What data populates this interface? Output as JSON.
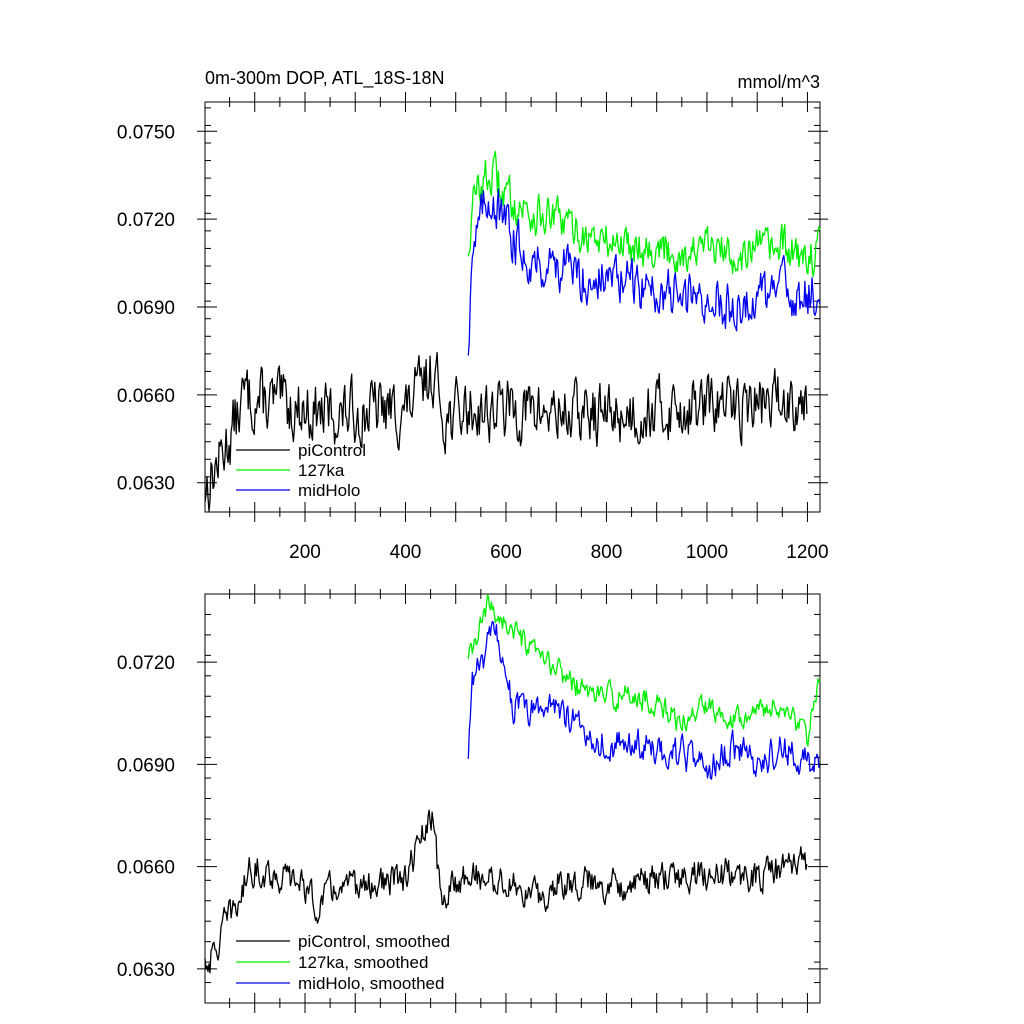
{
  "figure": {
    "title_left": "0m-300m DOP, ATL_18S-18N",
    "title_right": "mmol/m^3"
  },
  "chart_data": [
    {
      "type": "line",
      "panel": "top",
      "title": "0m-300m DOP, ATL_18S-18N",
      "units": "mmol/m^3",
      "xlim": [
        1,
        1225
      ],
      "ylim": [
        0.062,
        0.076
      ],
      "yticks": [
        0.063,
        0.066,
        0.069,
        0.072,
        0.075
      ],
      "ytick_labels": [
        "0.0630",
        "0.0660",
        "0.0690",
        "0.0720",
        "0.0750"
      ],
      "xticks": [
        200,
        400,
        600,
        800,
        1000,
        1200
      ],
      "xtick_labels": [
        "200",
        "400",
        "600",
        "800",
        "1000",
        "1200"
      ],
      "legend_position": "lower-left",
      "series": [
        {
          "name": "piControl",
          "color": "#000000",
          "x_start": 1,
          "x_end": 1200,
          "anchors": [
            [
              1,
              0.0628
            ],
            [
              30,
              0.0638
            ],
            [
              60,
              0.065
            ],
            [
              80,
              0.066
            ],
            [
              100,
              0.0658
            ],
            [
              150,
              0.0657
            ],
            [
              200,
              0.0655
            ],
            [
              250,
              0.0653
            ],
            [
              300,
              0.0654
            ],
            [
              350,
              0.0655
            ],
            [
              400,
              0.0654
            ],
            [
              430,
              0.0662
            ],
            [
              455,
              0.0668
            ],
            [
              480,
              0.0652
            ],
            [
              520,
              0.0655
            ],
            [
              600,
              0.0655
            ],
            [
              700,
              0.0654
            ],
            [
              800,
              0.0653
            ],
            [
              900,
              0.0655
            ],
            [
              1000,
              0.0656
            ],
            [
              1100,
              0.0657
            ],
            [
              1200,
              0.066
            ]
          ],
          "noise": 0.0009
        },
        {
          "name": "127ka",
          "color": "#00ee00",
          "x_start": 525,
          "x_end": 1225,
          "anchors": [
            [
              525,
              0.071
            ],
            [
              535,
              0.0725
            ],
            [
              550,
              0.0733
            ],
            [
              575,
              0.0735
            ],
            [
              600,
              0.0728
            ],
            [
              650,
              0.0722
            ],
            [
              700,
              0.072
            ],
            [
              750,
              0.0715
            ],
            [
              800,
              0.0712
            ],
            [
              850,
              0.0712
            ],
            [
              900,
              0.071
            ],
            [
              950,
              0.0708
            ],
            [
              1000,
              0.071
            ],
            [
              1050,
              0.0708
            ],
            [
              1100,
              0.071
            ],
            [
              1150,
              0.071
            ],
            [
              1200,
              0.0706
            ],
            [
              1225,
              0.071
            ]
          ],
          "noise": 0.0006
        },
        {
          "name": "midHolo",
          "color": "#0000ee",
          "x_start": 525,
          "x_end": 1225,
          "anchors": [
            [
              525,
              0.0676
            ],
            [
              532,
              0.071
            ],
            [
              550,
              0.072
            ],
            [
              570,
              0.073
            ],
            [
              590,
              0.072
            ],
            [
              620,
              0.0712
            ],
            [
              660,
              0.0705
            ],
            [
              700,
              0.0705
            ],
            [
              750,
              0.07
            ],
            [
              800,
              0.07
            ],
            [
              850,
              0.0698
            ],
            [
              900,
              0.0696
            ],
            [
              950,
              0.0693
            ],
            [
              1000,
              0.0693
            ],
            [
              1050,
              0.069
            ],
            [
              1100,
              0.0693
            ],
            [
              1150,
              0.0696
            ],
            [
              1200,
              0.0693
            ],
            [
              1225,
              0.0695
            ]
          ],
          "noise": 0.0007
        }
      ]
    },
    {
      "type": "line",
      "panel": "bottom",
      "xlim": [
        1,
        1225
      ],
      "ylim": [
        0.062,
        0.074
      ],
      "yticks": [
        0.063,
        0.066,
        0.069,
        0.072
      ],
      "ytick_labels": [
        "0.0630",
        "0.0660",
        "0.0690",
        "0.0720"
      ],
      "xticks": [
        200,
        400,
        600,
        800,
        1000,
        1200
      ],
      "legend_position": "lower-left",
      "series": [
        {
          "name": "piControl, smoothed",
          "color": "#000000",
          "x_start": 1,
          "x_end": 1200,
          "anchors": [
            [
              1,
              0.0632
            ],
            [
              20,
              0.0634
            ],
            [
              40,
              0.0643
            ],
            [
              70,
              0.065
            ],
            [
              90,
              0.066
            ],
            [
              150,
              0.0657
            ],
            [
              200,
              0.0655
            ],
            [
              220,
              0.0648
            ],
            [
              250,
              0.0653
            ],
            [
              300,
              0.0654
            ],
            [
              350,
              0.0655
            ],
            [
              400,
              0.0656
            ],
            [
              430,
              0.0668
            ],
            [
              455,
              0.0674
            ],
            [
              470,
              0.065
            ],
            [
              520,
              0.0658
            ],
            [
              600,
              0.0655
            ],
            [
              680,
              0.065
            ],
            [
              700,
              0.0656
            ],
            [
              800,
              0.0655
            ],
            [
              900,
              0.0656
            ],
            [
              1000,
              0.0658
            ],
            [
              1100,
              0.0657
            ],
            [
              1200,
              0.0662
            ]
          ],
          "noise": 0.0004
        },
        {
          "name": "127ka, smoothed",
          "color": "#00ee00",
          "x_start": 525,
          "x_end": 1225,
          "anchors": [
            [
              525,
              0.072
            ],
            [
              545,
              0.0728
            ],
            [
              565,
              0.0737
            ],
            [
              590,
              0.0733
            ],
            [
              620,
              0.0728
            ],
            [
              650,
              0.0723
            ],
            [
              700,
              0.0718
            ],
            [
              750,
              0.0712
            ],
            [
              800,
              0.071
            ],
            [
              850,
              0.071
            ],
            [
              900,
              0.0708
            ],
            [
              950,
              0.0702
            ],
            [
              1000,
              0.0708
            ],
            [
              1050,
              0.0704
            ],
            [
              1100,
              0.0706
            ],
            [
              1150,
              0.0707
            ],
            [
              1200,
              0.0698
            ],
            [
              1215,
              0.0712
            ],
            [
              1225,
              0.0712
            ]
          ],
          "noise": 0.0003
        },
        {
          "name": "midHolo, smoothed",
          "color": "#0000ee",
          "x_start": 525,
          "x_end": 1225,
          "anchors": [
            [
              525,
              0.069
            ],
            [
              532,
              0.0715
            ],
            [
              560,
              0.0722
            ],
            [
              575,
              0.073
            ],
            [
              590,
              0.0724
            ],
            [
              615,
              0.0707
            ],
            [
              640,
              0.0705
            ],
            [
              700,
              0.0708
            ],
            [
              750,
              0.07
            ],
            [
              800,
              0.0696
            ],
            [
              850,
              0.0696
            ],
            [
              900,
              0.0694
            ],
            [
              950,
              0.0693
            ],
            [
              1000,
              0.0688
            ],
            [
              1050,
              0.0695
            ],
            [
              1100,
              0.069
            ],
            [
              1150,
              0.0695
            ],
            [
              1200,
              0.069
            ],
            [
              1225,
              0.0692
            ]
          ],
          "noise": 0.0004
        }
      ]
    }
  ]
}
